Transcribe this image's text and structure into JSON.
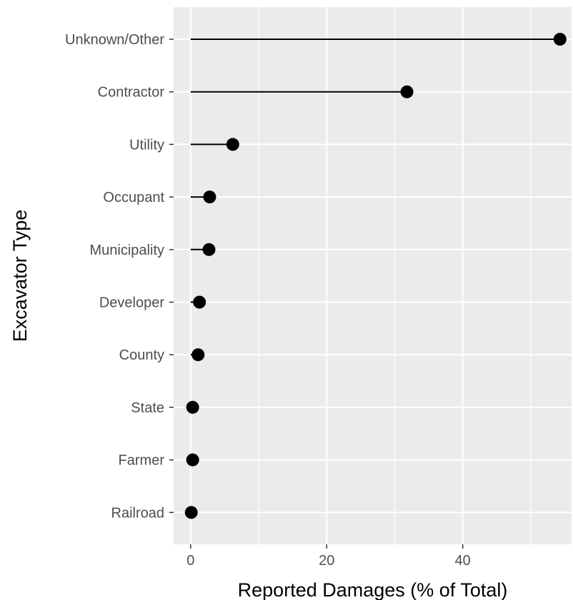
{
  "chart_data": {
    "type": "lollipop",
    "title": "",
    "xlabel": "Reported Damages (% of Total)",
    "ylabel": "Excavator Type",
    "xlim": [
      -2.5,
      56
    ],
    "x_ticks": [
      0,
      20,
      40
    ],
    "grid": true,
    "categories": [
      "Unknown/Other",
      "Contractor",
      "Utility",
      "Occupant",
      "Municipality",
      "Developer",
      "County",
      "State",
      "Farmer",
      "Railroad"
    ],
    "values": [
      54.3,
      31.8,
      6.2,
      2.8,
      2.7,
      1.3,
      1.1,
      0.3,
      0.3,
      0.1
    ],
    "colors": {
      "panel": "#ebebeb",
      "grid": "#ffffff",
      "mark": "#000000",
      "tick_text": "#4d4d4d",
      "tick_mark": "#333333"
    }
  }
}
